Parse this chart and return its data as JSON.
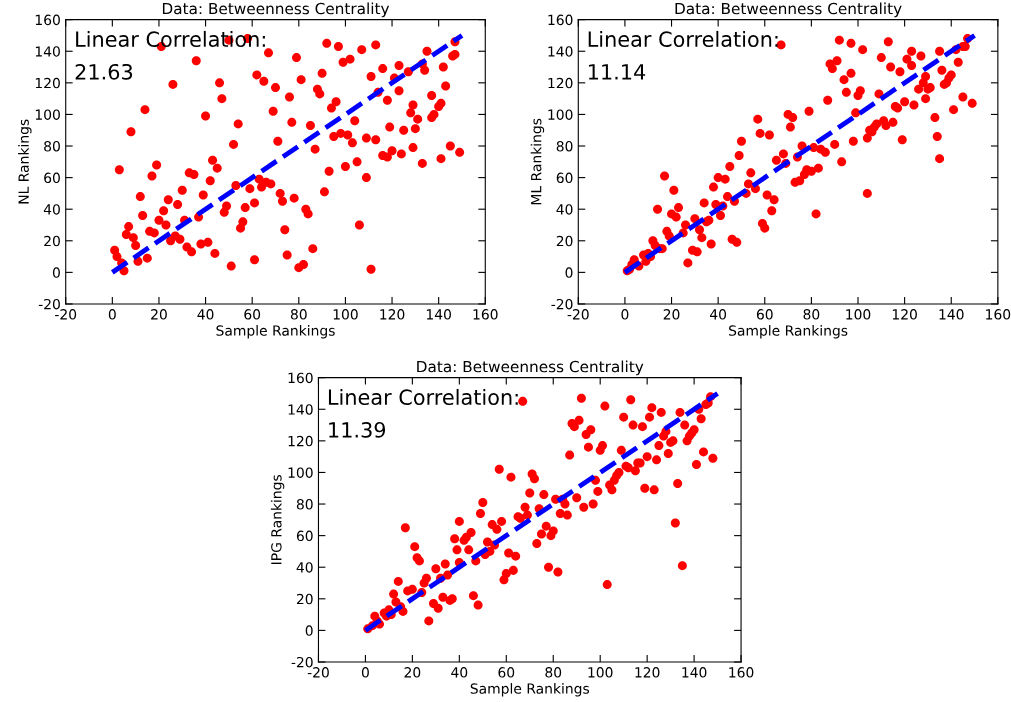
{
  "chart_data": [
    {
      "type": "scatter",
      "title": "Data: Betweenness Centrality",
      "xlabel": "Sample Rankings",
      "ylabel": "NL Rankings",
      "xlim": [
        -20,
        160
      ],
      "ylim": [
        -20,
        160
      ],
      "xticks": [
        -20,
        0,
        20,
        40,
        60,
        80,
        100,
        120,
        140,
        160
      ],
      "yticks": [
        -20,
        0,
        20,
        40,
        60,
        80,
        100,
        120,
        140,
        160
      ],
      "annotations": [
        "Linear Correlation:",
        "21.63"
      ],
      "series": [
        {
          "marker": "circle",
          "color": "#ff0000",
          "x": [
            21,
            50,
            58,
            67,
            36,
            26,
            46,
            47,
            62,
            65,
            70,
            69,
            14,
            40,
            54,
            52,
            71,
            8,
            3,
            19,
            17,
            43,
            45,
            42,
            33,
            35,
            63,
            64,
            66,
            68,
            53,
            59,
            72,
            12,
            30,
            24,
            39,
            28,
            22,
            13,
            20,
            23,
            31,
            37,
            49,
            48,
            57,
            61,
            56,
            55,
            7,
            6,
            9,
            16,
            18,
            10,
            27,
            25,
            29,
            32,
            34,
            38,
            41,
            44,
            1,
            2,
            4,
            5,
            11,
            15,
            51,
            61,
            92,
            97,
            107,
            113,
            79,
            99,
            102,
            90,
            81,
            111,
            116,
            123,
            127,
            121,
            123,
            135,
            133,
            134,
            142,
            146,
            147,
            147,
            143,
            137,
            129,
            128,
            131,
            138,
            137,
            140,
            141,
            118,
            114,
            76,
            89,
            88,
            96,
            94,
            77,
            85,
            104,
            119,
            125,
            130,
            87,
            95,
            98,
            101,
            103,
            109,
            113,
            116,
            118,
            120,
            124,
            129,
            133,
            141,
            145,
            149,
            105,
            100,
            93,
            109,
            91,
            73,
            78,
            83,
            84,
            74,
            106,
            75,
            86,
            80,
            82,
            111
          ],
          "values": [
            143,
            147,
            148,
            139,
            134,
            119,
            120,
            110,
            125,
            121,
            117,
            102,
            103,
            99,
            94,
            81,
            83,
            89,
            65,
            68,
            61,
            71,
            66,
            58,
            63,
            62,
            59,
            54,
            57,
            56,
            55,
            53,
            50,
            48,
            52,
            46,
            49,
            43,
            39,
            36,
            33,
            30,
            33,
            35,
            42,
            38,
            41,
            44,
            32,
            28,
            29,
            24,
            22,
            26,
            25,
            17,
            23,
            20,
            21,
            16,
            13,
            18,
            19,
            12,
            14,
            10,
            6,
            1,
            7,
            9,
            4,
            8,
            145,
            143,
            141,
            144,
            136,
            133,
            135,
            126,
            122,
            124,
            129,
            131,
            127,
            123,
            115,
            140,
            132,
            128,
            130,
            137,
            138,
            146,
            118,
            112,
            106,
            101,
            97,
            100,
            98,
            105,
            107,
            109,
            114,
            111,
            113,
            116,
            108,
            104,
            95,
            93,
            96,
            92,
            90,
            91,
            78,
            86,
            88,
            87,
            82,
            85,
            84,
            74,
            73,
            77,
            75,
            79,
            69,
            72,
            80,
            76,
            70,
            67,
            64,
            60,
            51,
            45,
            47,
            40,
            37,
            27,
            30,
            11,
            15,
            3,
            5,
            2
          ]
        },
        {
          "type": "line",
          "color": "#0000ff",
          "line_style": "dashed",
          "x": [
            0,
            150
          ],
          "values": [
            0,
            150
          ]
        }
      ]
    },
    {
      "type": "scatter",
      "title": "Data: Betweenness Centrality",
      "xlabel": "Sample Rankings",
      "ylabel": "ML Rankings",
      "xlim": [
        -20,
        160
      ],
      "ylim": [
        -20,
        160
      ],
      "xticks": [
        -20,
        0,
        20,
        40,
        60,
        80,
        100,
        120,
        140,
        160
      ],
      "yticks": [
        -20,
        0,
        20,
        40,
        60,
        80,
        100,
        120,
        140,
        160
      ],
      "annotations": [
        "Linear Correlation:",
        "11.14"
      ],
      "series": [
        {
          "marker": "circle",
          "color": "#ff0000",
          "x": [
            67,
            57,
            58,
            62,
            70,
            71,
            50,
            49,
            45,
            40,
            43,
            38,
            54,
            53,
            56,
            65,
            68,
            69,
            17,
            21,
            23,
            22,
            20,
            14,
            34,
            39,
            42,
            44,
            47,
            52,
            41,
            61,
            64,
            63,
            59,
            60,
            30,
            36,
            35,
            26,
            25,
            32,
            33,
            37,
            46,
            48,
            18,
            19,
            12,
            13,
            15,
            16,
            29,
            31,
            27,
            10,
            8,
            11,
            9,
            6,
            4,
            3,
            1,
            2,
            92,
            97,
            102,
            113,
            110,
            123,
            127,
            121,
            123,
            114,
            118,
            88,
            89,
            91,
            97,
            94,
            95,
            101,
            100,
            109,
            87,
            99,
            79,
            72,
            135,
            142,
            145,
            146,
            147,
            143,
            136,
            140,
            139,
            138,
            137,
            129,
            128,
            131,
            130,
            126,
            120,
            124,
            116,
            117,
            129,
            145,
            149,
            141,
            133,
            134,
            135,
            111,
            112,
            115,
            108,
            107,
            105,
            106,
            104,
            119,
            98,
            90,
            93,
            81,
            84,
            86,
            76,
            74,
            80,
            78,
            83,
            77,
            73,
            75,
            104,
            82
          ],
          "values": [
            144,
            97,
            88,
            87,
            100,
            92,
            83,
            74,
            67,
            60,
            59,
            54,
            63,
            56,
            53,
            71,
            75,
            69,
            61,
            52,
            41,
            35,
            37,
            40,
            44,
            43,
            42,
            48,
            45,
            50,
            36,
            49,
            46,
            39,
            31,
            28,
            34,
            33,
            32,
            30,
            25,
            27,
            22,
            18,
            21,
            19,
            26,
            23,
            20,
            17,
            15,
            15,
            14,
            13,
            6,
            12,
            11,
            10,
            7,
            4,
            8,
            5,
            1,
            2,
            147,
            145,
            141,
            146,
            136,
            140,
            137,
            135,
            131,
            130,
            127,
            132,
            129,
            134,
            126,
            122,
            114,
            115,
            112,
            113,
            109,
            101,
            102,
            98,
            140,
            141,
            143,
            143,
            148,
            133,
            128,
            125,
            123,
            120,
            119,
            124,
            120,
            117,
            116,
            116,
            108,
            106,
            105,
            104,
            110,
            111,
            107,
            103,
            98,
            86,
            72,
            96,
            93,
            95,
            94,
            92,
            90,
            89,
            85,
            84,
            83,
            81,
            70,
            79,
            78,
            76,
            80,
            73,
            64,
            65,
            66,
            62,
            57,
            58,
            50,
            37
          ]
        },
        {
          "type": "line",
          "color": "#0000ff",
          "line_style": "dashed",
          "x": [
            0,
            150
          ],
          "values": [
            0,
            150
          ]
        }
      ]
    },
    {
      "type": "scatter",
      "title": "Data: Betweenness Centrality",
      "xlabel": "Sample Rankings",
      "ylabel": "IPG Rankings",
      "xlim": [
        -20,
        160
      ],
      "ylim": [
        -20,
        160
      ],
      "xticks": [
        -20,
        0,
        20,
        40,
        60,
        80,
        100,
        120,
        140,
        160
      ],
      "yticks": [
        -20,
        0,
        20,
        40,
        60,
        80,
        100,
        120,
        140,
        160
      ],
      "annotations": [
        "Linear Correlation:",
        "11.39"
      ],
      "series": [
        {
          "marker": "circle",
          "color": "#ff0000",
          "x": [
            67,
            57,
            62,
            17,
            21,
            22,
            23,
            14,
            12,
            13,
            15,
            16,
            18,
            20,
            24,
            25,
            26,
            30,
            32,
            34,
            35,
            27,
            29,
            31,
            33,
            36,
            37,
            40,
            39,
            38,
            40,
            42,
            43,
            45,
            44,
            47,
            46,
            48,
            49,
            50,
            52,
            51,
            53,
            54,
            56,
            55,
            58,
            61,
            60,
            59,
            63,
            64,
            65,
            66,
            68,
            69,
            4,
            5,
            3,
            1,
            8,
            9,
            10,
            11,
            6,
            92,
            102,
            113,
            122,
            126,
            134,
            110,
            121,
            91,
            88,
            89,
            114,
            118,
            143,
            142,
            145,
            146,
            147,
            136,
            96,
            94,
            95,
            101,
            100,
            109,
            128,
            127,
            125,
            130,
            131,
            129,
            124,
            120,
            116,
            117,
            115,
            111,
            112,
            140,
            139,
            138,
            137,
            144,
            148,
            141,
            133,
            132,
            135,
            87,
            71,
            72,
            108,
            107,
            106,
            104,
            105,
            119,
            123,
            98,
            99,
            70,
            76,
            90,
            81,
            84,
            85,
            93,
            97,
            74,
            83,
            86,
            77,
            75,
            80,
            79,
            73,
            78,
            82,
            103
          ],
          "values": [
            145,
            102,
            97,
            65,
            53,
            46,
            44,
            31,
            23,
            18,
            15,
            12,
            25,
            26,
            24,
            30,
            33,
            39,
            33,
            42,
            35,
            6,
            17,
            14,
            21,
            19,
            20,
            69,
            51,
            58,
            43,
            57,
            59,
            62,
            51,
            44,
            22,
            16,
            74,
            81,
            56,
            48,
            50,
            67,
            64,
            54,
            69,
            49,
            36,
            32,
            38,
            47,
            72,
            71,
            78,
            73,
            9,
            6,
            3,
            1,
            11,
            9,
            13,
            10,
            4,
            147,
            142,
            146,
            141,
            138,
            138,
            135,
            135,
            133,
            131,
            129,
            130,
            129,
            134,
            140,
            143,
            144,
            148,
            130,
            127,
            124,
            116,
            117,
            114,
            114,
            126,
            123,
            117,
            119,
            120,
            112,
            108,
            110,
            106,
            106,
            101,
            104,
            103,
            127,
            125,
            123,
            120,
            113,
            109,
            105,
            93,
            68,
            41,
            111,
            99,
            96,
            100,
            98,
            95,
            92,
            89,
            90,
            89,
            95,
            88,
            87,
            86,
            84,
            83,
            83,
            80,
            78,
            80,
            77,
            74,
            73,
            66,
            61,
            63,
            60,
            55,
            40,
            37,
            29
          ]
        },
        {
          "type": "line",
          "color": "#0000ff",
          "line_style": "dashed",
          "x": [
            0,
            150
          ],
          "values": [
            0,
            150
          ]
        }
      ]
    }
  ]
}
